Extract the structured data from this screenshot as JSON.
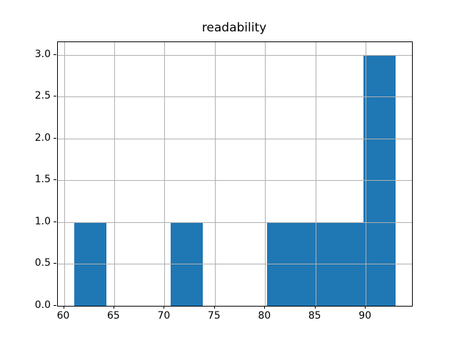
{
  "chart_data": {
    "type": "bar",
    "subtype": "histogram",
    "title": "readability",
    "xlabel": "",
    "ylabel": "",
    "bin_edges": [
      61.0,
      64.2,
      67.4,
      70.6,
      73.8,
      77.0,
      80.2,
      83.4,
      86.6,
      89.8,
      93.0
    ],
    "counts": [
      1,
      0,
      0,
      1,
      0,
      0,
      1,
      1,
      1,
      3
    ],
    "xlim": [
      59.4,
      94.6
    ],
    "ylim": [
      0,
      3.15
    ],
    "xticks": [
      60,
      65,
      70,
      75,
      80,
      85,
      90
    ],
    "xtick_labels": [
      "60",
      "65",
      "70",
      "75",
      "80",
      "85",
      "90"
    ],
    "yticks": [
      0.0,
      0.5,
      1.0,
      1.5,
      2.0,
      2.5,
      3.0
    ],
    "ytick_labels": [
      "0.0",
      "0.5",
      "1.0",
      "1.5",
      "2.0",
      "2.5",
      "3.0"
    ],
    "grid": true,
    "grid_above_bars": true,
    "legend": "none",
    "colors": {
      "bar": "#1f77b4",
      "grid": "#b0b0b0",
      "spine": "#000000",
      "text": "#000000",
      "background": "#ffffff"
    }
  }
}
